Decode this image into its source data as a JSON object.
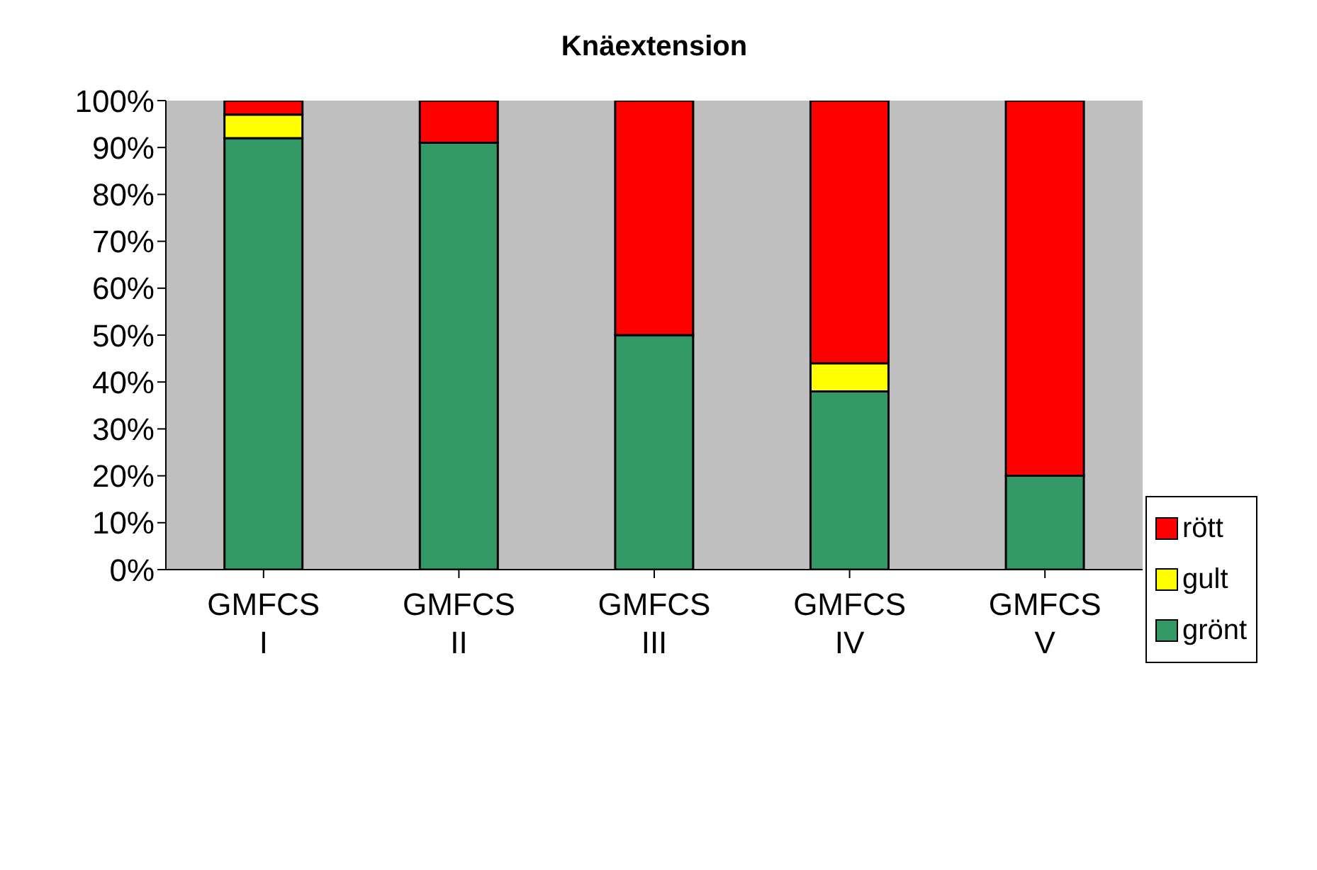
{
  "chart_data": {
    "type": "bar",
    "title": "Knäextension",
    "stacked": true,
    "categories": [
      "GMFCS I",
      "GMFCS II",
      "GMFCS III",
      "GMFCS IV",
      "GMFCS V"
    ],
    "series": [
      {
        "name": "grönt",
        "color": "#339966",
        "values": [
          92,
          91,
          50,
          38,
          20
        ]
      },
      {
        "name": "gult",
        "color": "#ffff00",
        "values": [
          5,
          0,
          0,
          6,
          0
        ]
      },
      {
        "name": "rött",
        "color": "#ff0000",
        "values": [
          3,
          9,
          50,
          56,
          80
        ]
      }
    ],
    "ylim": [
      0,
      100
    ],
    "yticks": [
      {
        "value": 0,
        "label": "0%"
      },
      {
        "value": 10,
        "label": "10%"
      },
      {
        "value": 20,
        "label": "20%"
      },
      {
        "value": 30,
        "label": "30%"
      },
      {
        "value": 40,
        "label": "40%"
      },
      {
        "value": 50,
        "label": "50%"
      },
      {
        "value": 60,
        "label": "60%"
      },
      {
        "value": 70,
        "label": "70%"
      },
      {
        "value": 80,
        "label": "80%"
      },
      {
        "value": 90,
        "label": "90%"
      },
      {
        "value": 100,
        "label": "100%"
      }
    ],
    "grid": false,
    "legend": "right"
  }
}
